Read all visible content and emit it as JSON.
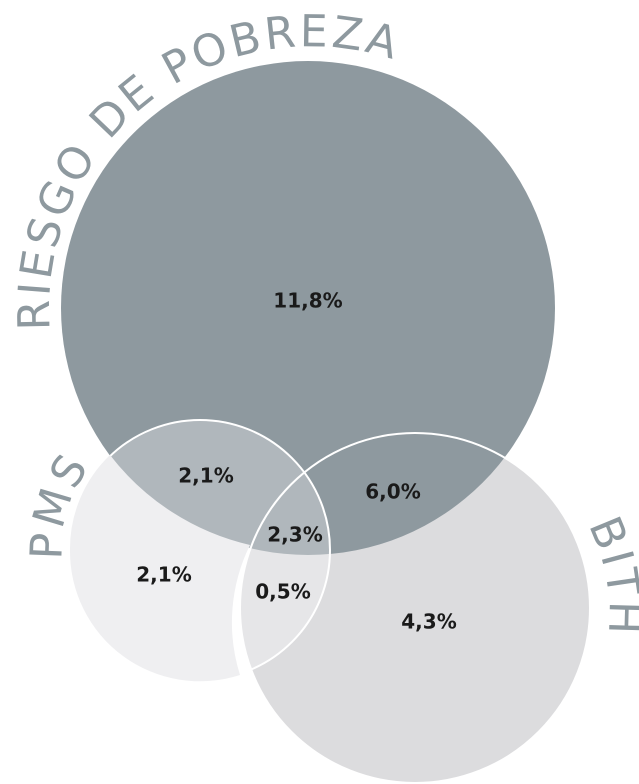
{
  "sets": [
    {
      "label": "RIESGO DE POBREZA"
    },
    {
      "label": "PMS"
    },
    {
      "label": "BITH"
    }
  ],
  "regions": [
    {
      "label": "11,8%"
    },
    {
      "label": "2,1%"
    },
    {
      "label": "6,0%"
    },
    {
      "label": "2,3%"
    },
    {
      "label": "2,1%"
    },
    {
      "label": "0,5%"
    },
    {
      "label": "4,3%"
    }
  ]
}
